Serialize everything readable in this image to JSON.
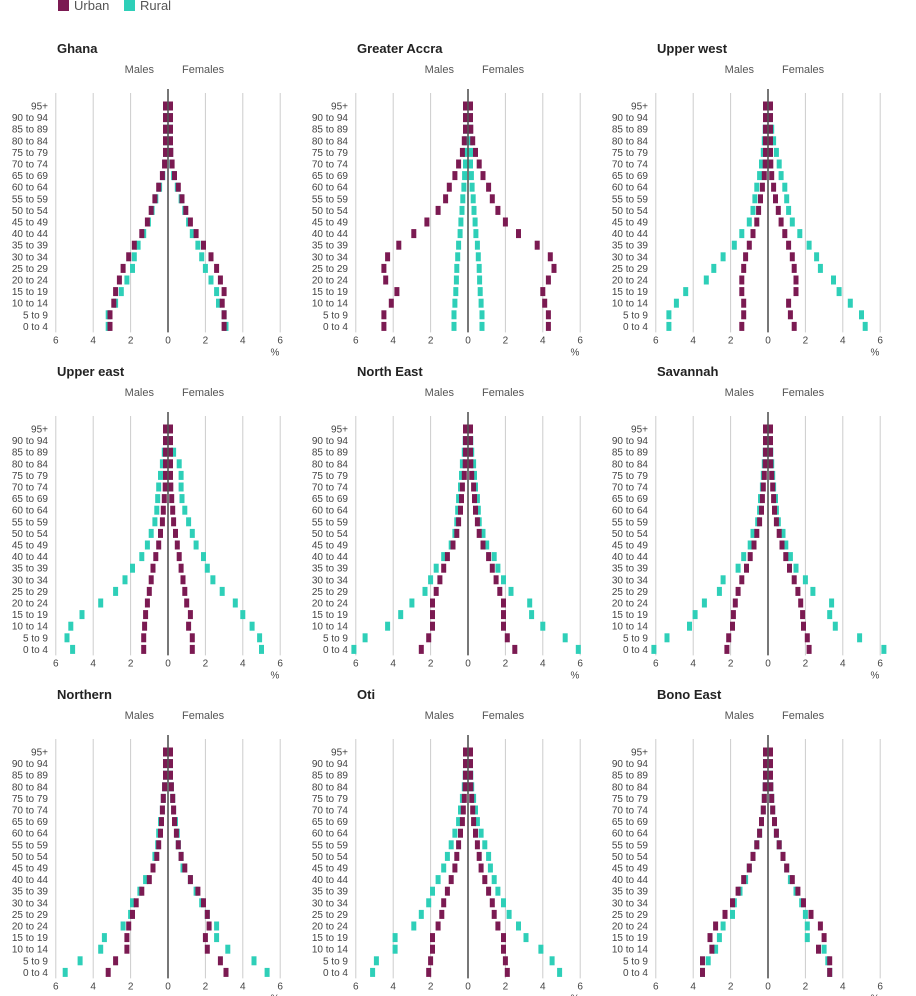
{
  "legend": {
    "urban_label": "Urban",
    "rural_label": "Rural",
    "urban_color": "#7b1a52",
    "rural_color": "#2ecfb8"
  },
  "chart_data": {
    "type": "bar",
    "subtype": "population-pyramid",
    "left_label": "Males",
    "right_label": "Females",
    "unit_label": "%",
    "xlim": [
      -6,
      6
    ],
    "xticks": [
      6,
      4,
      2,
      0,
      2,
      4,
      6
    ],
    "age_groups": [
      "95+",
      "90 to 94",
      "85 to 89",
      "80 to 84",
      "75 to 79",
      "70 to 74",
      "65 to 69",
      "60 to 64",
      "55 to 59",
      "50 to 54",
      "45 to 49",
      "40 to 44",
      "35 to 39",
      "30 to 34",
      "25 to 29",
      "20 to 24",
      "15 to 19",
      "10 to 14",
      "5 to 9",
      "0 to 4"
    ],
    "panels": [
      {
        "title": "Ghana",
        "urban_male": [
          0.02,
          0.03,
          0.05,
          0.08,
          0.12,
          0.18,
          0.3,
          0.5,
          0.7,
          0.9,
          1.1,
          1.4,
          1.8,
          2.1,
          2.4,
          2.6,
          2.8,
          2.9,
          3.1,
          3.1
        ],
        "urban_female": [
          0.02,
          0.04,
          0.06,
          0.1,
          0.15,
          0.22,
          0.35,
          0.55,
          0.75,
          0.95,
          1.2,
          1.5,
          1.9,
          2.3,
          2.6,
          2.8,
          3.0,
          2.9,
          3.0,
          3.0
        ],
        "rural_male": [
          0.02,
          0.03,
          0.05,
          0.08,
          0.12,
          0.18,
          0.28,
          0.45,
          0.65,
          0.85,
          1.05,
          1.3,
          1.6,
          1.8,
          1.9,
          2.2,
          2.5,
          2.8,
          3.2,
          3.2
        ],
        "rural_female": [
          0.02,
          0.04,
          0.06,
          0.1,
          0.14,
          0.2,
          0.3,
          0.5,
          0.7,
          0.9,
          1.1,
          1.3,
          1.6,
          1.8,
          2.0,
          2.3,
          2.6,
          2.7,
          3.0,
          3.1
        ]
      },
      {
        "title": "Greater Accra",
        "urban_male": [
          0.05,
          0.08,
          0.12,
          0.2,
          0.3,
          0.5,
          0.7,
          1.0,
          1.2,
          1.6,
          2.2,
          2.9,
          3.7,
          4.3,
          4.5,
          4.4,
          3.8,
          4.1,
          4.5,
          4.5
        ],
        "urban_female": [
          0.08,
          0.1,
          0.15,
          0.25,
          0.4,
          0.6,
          0.8,
          1.1,
          1.3,
          1.6,
          2.0,
          2.7,
          3.7,
          4.4,
          4.6,
          4.3,
          4.0,
          4.1,
          4.3,
          4.3
        ],
        "rural_male": [
          0.02,
          0.03,
          0.05,
          0.07,
          0.1,
          0.13,
          0.18,
          0.22,
          0.28,
          0.32,
          0.38,
          0.42,
          0.5,
          0.55,
          0.6,
          0.62,
          0.65,
          0.7,
          0.75,
          0.75
        ],
        "rural_female": [
          0.02,
          0.03,
          0.05,
          0.07,
          0.1,
          0.13,
          0.18,
          0.22,
          0.28,
          0.32,
          0.38,
          0.42,
          0.5,
          0.55,
          0.6,
          0.62,
          0.65,
          0.7,
          0.75,
          0.75
        ]
      },
      {
        "title": "Upper west",
        "urban_male": [
          0.02,
          0.03,
          0.05,
          0.08,
          0.1,
          0.15,
          0.2,
          0.3,
          0.4,
          0.5,
          0.6,
          0.8,
          1.0,
          1.2,
          1.3,
          1.4,
          1.4,
          1.3,
          1.3,
          1.4
        ],
        "urban_female": [
          0.02,
          0.03,
          0.05,
          0.08,
          0.1,
          0.15,
          0.2,
          0.3,
          0.4,
          0.55,
          0.7,
          0.9,
          1.1,
          1.3,
          1.4,
          1.5,
          1.5,
          1.1,
          1.2,
          1.4
        ],
        "rural_male": [
          0.05,
          0.1,
          0.15,
          0.2,
          0.25,
          0.35,
          0.45,
          0.6,
          0.7,
          0.8,
          1.0,
          1.4,
          1.8,
          2.4,
          2.9,
          3.3,
          4.4,
          4.9,
          5.3,
          5.3
        ],
        "rural_female": [
          0.05,
          0.1,
          0.2,
          0.3,
          0.45,
          0.6,
          0.7,
          0.9,
          1.0,
          1.1,
          1.3,
          1.7,
          2.2,
          2.6,
          2.8,
          3.5,
          3.8,
          4.4,
          5.0,
          5.2
        ]
      },
      {
        "title": "Upper east",
        "urban_male": [
          0.05,
          0.05,
          0.08,
          0.1,
          0.12,
          0.15,
          0.2,
          0.25,
          0.3,
          0.4,
          0.5,
          0.65,
          0.8,
          0.9,
          1.0,
          1.1,
          1.2,
          1.25,
          1.3,
          1.3
        ],
        "urban_female": [
          0.05,
          0.05,
          0.08,
          0.1,
          0.12,
          0.15,
          0.2,
          0.25,
          0.3,
          0.4,
          0.5,
          0.6,
          0.7,
          0.8,
          0.9,
          1.0,
          1.2,
          1.1,
          1.3,
          1.3
        ],
        "rural_male": [
          0.05,
          0.1,
          0.2,
          0.3,
          0.4,
          0.5,
          0.55,
          0.6,
          0.7,
          0.9,
          1.1,
          1.4,
          1.9,
          2.3,
          2.8,
          3.6,
          4.6,
          5.2,
          5.4,
          5.1
        ],
        "rural_female": [
          0.05,
          0.1,
          0.3,
          0.6,
          0.7,
          0.7,
          0.75,
          0.9,
          1.1,
          1.3,
          1.5,
          1.9,
          2.1,
          2.4,
          2.9,
          3.6,
          4.0,
          4.5,
          4.9,
          5.0
        ]
      },
      {
        "title": "North East",
        "urban_male": [
          0.05,
          0.08,
          0.12,
          0.15,
          0.2,
          0.3,
          0.35,
          0.4,
          0.5,
          0.6,
          0.8,
          1.1,
          1.3,
          1.5,
          1.7,
          1.9,
          1.9,
          1.9,
          2.1,
          2.5
        ],
        "urban_female": [
          0.05,
          0.08,
          0.12,
          0.15,
          0.2,
          0.3,
          0.35,
          0.4,
          0.5,
          0.6,
          0.8,
          1.1,
          1.3,
          1.5,
          1.7,
          1.9,
          1.9,
          1.9,
          2.1,
          2.5
        ],
        "rural_male": [
          0.1,
          0.15,
          0.2,
          0.3,
          0.35,
          0.4,
          0.5,
          0.55,
          0.6,
          0.7,
          0.9,
          1.3,
          1.7,
          2.0,
          2.3,
          3.0,
          3.6,
          4.3,
          5.5,
          6.1
        ],
        "rural_female": [
          0.1,
          0.15,
          0.2,
          0.3,
          0.35,
          0.4,
          0.5,
          0.55,
          0.6,
          0.8,
          1.0,
          1.4,
          1.6,
          1.9,
          2.3,
          3.3,
          3.4,
          4.0,
          5.2,
          5.9
        ]
      },
      {
        "title": "Savannah",
        "urban_male": [
          0.05,
          0.08,
          0.12,
          0.15,
          0.2,
          0.25,
          0.3,
          0.35,
          0.45,
          0.6,
          0.75,
          0.95,
          1.15,
          1.4,
          1.6,
          1.75,
          1.85,
          1.9,
          2.1,
          2.2
        ],
        "urban_female": [
          0.05,
          0.08,
          0.12,
          0.15,
          0.2,
          0.25,
          0.3,
          0.35,
          0.45,
          0.6,
          0.75,
          0.95,
          1.15,
          1.4,
          1.6,
          1.75,
          1.85,
          1.9,
          2.1,
          2.2
        ],
        "rural_male": [
          0.1,
          0.1,
          0.15,
          0.2,
          0.25,
          0.3,
          0.4,
          0.45,
          0.55,
          0.8,
          0.95,
          1.3,
          1.6,
          2.4,
          2.6,
          3.4,
          3.9,
          4.2,
          5.4,
          6.1
        ],
        "rural_female": [
          0.1,
          0.1,
          0.15,
          0.2,
          0.25,
          0.3,
          0.4,
          0.45,
          0.55,
          0.8,
          0.95,
          1.2,
          1.5,
          2.0,
          2.4,
          3.4,
          3.3,
          3.6,
          4.9,
          6.2
        ]
      },
      {
        "title": "Northern",
        "urban_male": [
          0.05,
          0.08,
          0.12,
          0.18,
          0.25,
          0.3,
          0.35,
          0.4,
          0.5,
          0.6,
          0.8,
          1.0,
          1.4,
          1.7,
          1.9,
          2.1,
          2.2,
          2.2,
          2.8,
          3.2
        ],
        "urban_female": [
          0.05,
          0.08,
          0.12,
          0.18,
          0.25,
          0.3,
          0.35,
          0.45,
          0.55,
          0.7,
          0.9,
          1.2,
          1.6,
          1.9,
          2.1,
          2.2,
          2.0,
          2.1,
          2.8,
          3.1
        ],
        "rural_male": [
          0.05,
          0.08,
          0.12,
          0.18,
          0.25,
          0.3,
          0.4,
          0.5,
          0.55,
          0.7,
          0.8,
          1.2,
          1.5,
          1.9,
          2.0,
          2.4,
          3.4,
          3.6,
          4.7,
          5.5
        ],
        "rural_female": [
          0.05,
          0.08,
          0.12,
          0.18,
          0.25,
          0.3,
          0.4,
          0.5,
          0.55,
          0.7,
          0.8,
          1.2,
          1.5,
          1.8,
          2.1,
          2.6,
          2.6,
          3.2,
          4.6,
          5.3
        ]
      },
      {
        "title": "Oti",
        "urban_male": [
          0.05,
          0.08,
          0.12,
          0.15,
          0.2,
          0.25,
          0.3,
          0.4,
          0.5,
          0.6,
          0.7,
          0.9,
          1.1,
          1.3,
          1.4,
          1.6,
          1.9,
          1.9,
          2.0,
          2.1
        ],
        "urban_female": [
          0.05,
          0.08,
          0.12,
          0.15,
          0.2,
          0.25,
          0.3,
          0.4,
          0.5,
          0.6,
          0.7,
          0.9,
          1.1,
          1.3,
          1.4,
          1.6,
          1.9,
          1.9,
          2.0,
          2.1
        ],
        "rural_male": [
          0.05,
          0.1,
          0.15,
          0.2,
          0.3,
          0.4,
          0.5,
          0.7,
          0.9,
          1.1,
          1.3,
          1.6,
          1.9,
          2.1,
          2.5,
          2.9,
          3.9,
          3.9,
          4.9,
          5.1
        ],
        "rural_female": [
          0.05,
          0.1,
          0.15,
          0.2,
          0.3,
          0.4,
          0.5,
          0.7,
          0.9,
          1.1,
          1.2,
          1.4,
          1.6,
          1.9,
          2.2,
          2.7,
          3.1,
          3.9,
          4.5,
          4.9
        ]
      },
      {
        "title": "Bono East",
        "urban_male": [
          0.05,
          0.08,
          0.12,
          0.15,
          0.2,
          0.25,
          0.35,
          0.45,
          0.6,
          0.8,
          1.0,
          1.3,
          1.6,
          1.9,
          2.3,
          2.8,
          3.1,
          3.0,
          3.5,
          3.5
        ],
        "urban_female": [
          0.05,
          0.08,
          0.12,
          0.15,
          0.2,
          0.25,
          0.35,
          0.45,
          0.6,
          0.8,
          1.0,
          1.3,
          1.6,
          1.9,
          2.3,
          2.8,
          3.0,
          2.7,
          3.3,
          3.3
        ],
        "rural_male": [
          0.05,
          0.08,
          0.12,
          0.15,
          0.2,
          0.25,
          0.35,
          0.45,
          0.6,
          0.8,
          1.0,
          1.2,
          1.5,
          1.8,
          1.9,
          2.4,
          2.6,
          2.8,
          3.2,
          3.5
        ],
        "rural_female": [
          0.05,
          0.08,
          0.12,
          0.15,
          0.2,
          0.25,
          0.35,
          0.45,
          0.6,
          0.8,
          1.0,
          1.2,
          1.5,
          1.8,
          2.0,
          2.1,
          2.1,
          3.0,
          3.2,
          3.3
        ]
      }
    ]
  }
}
